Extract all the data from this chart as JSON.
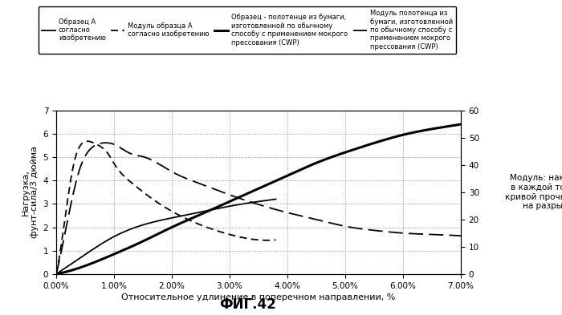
{
  "title": "ФИГ.42",
  "xlabel": "Относительное удлинение в поперечном направлении, %",
  "ylabel_left": "Нагрузка,\nфунт-сила/3 дюйма",
  "ylabel_right": "Модуль: наклон\nв каждой точке\nкривой прочности\nна разрыв",
  "xlim": [
    0.0,
    7.0
  ],
  "ylim_left": [
    0,
    7
  ],
  "ylim_right": [
    0,
    60
  ],
  "yticks_left": [
    0,
    1,
    2,
    3,
    4,
    5,
    6,
    7
  ],
  "yticks_right": [
    0,
    10,
    20,
    30,
    40,
    50,
    60
  ],
  "xticks": [
    0.0,
    1.0,
    2.0,
    3.0,
    4.0,
    5.0,
    6.0,
    7.0
  ],
  "legend_labels": [
    "Образец А\nсогласно\nизобретению",
    "Модуль образца А\nсогласно изобретению",
    "Образец - полотенце из бумаги,\nизготовленной по обычному\nспособу с применением мокрого\nпрессования (CWP)",
    "Модуль полотенца из\nбумаги, изготовленной\nпо обычному способу с\nприменением мокрого\nпрессования (CWP)"
  ],
  "bg_color": "#ffffff",
  "curve_A_load_x": [
    0.0,
    0.3,
    0.6,
    1.0,
    1.5,
    2.0,
    2.5,
    3.0,
    3.5,
    3.8
  ],
  "curve_A_load_y": [
    0.0,
    0.5,
    1.0,
    1.6,
    2.1,
    2.4,
    2.65,
    2.9,
    3.1,
    3.2
  ],
  "curve_B_load_x": [
    0.0,
    0.5,
    1.0,
    1.5,
    2.0,
    2.5,
    3.0,
    3.5,
    4.0,
    4.5,
    5.0,
    5.5,
    6.0,
    6.5,
    7.0
  ],
  "curve_B_load_y": [
    0.0,
    0.35,
    0.85,
    1.4,
    2.0,
    2.55,
    3.1,
    3.65,
    4.2,
    4.75,
    5.2,
    5.6,
    5.95,
    6.2,
    6.4
  ],
  "curve_A_mod_x": [
    0.0,
    0.15,
    0.3,
    0.5,
    0.7,
    0.9,
    1.0,
    1.3,
    1.6,
    2.0,
    2.5,
    3.0,
    3.5,
    3.8
  ],
  "curve_A_mod_y": [
    0.0,
    20.0,
    40.0,
    48.5,
    47.5,
    44.0,
    40.5,
    33.5,
    28.5,
    23.0,
    18.0,
    14.5,
    12.5,
    12.5
  ],
  "curve_B_mod_x": [
    0.0,
    0.2,
    0.4,
    0.6,
    0.8,
    1.0,
    1.3,
    1.5,
    2.0,
    2.5,
    3.0,
    3.5,
    4.0,
    4.5,
    5.0,
    5.5,
    6.0,
    6.5,
    7.0
  ],
  "curve_B_mod_y": [
    0.0,
    20.0,
    38.0,
    46.0,
    48.0,
    47.5,
    44.0,
    43.0,
    37.5,
    33.0,
    29.0,
    25.5,
    22.5,
    20.0,
    17.5,
    16.0,
    15.0,
    14.5,
    14.0
  ]
}
